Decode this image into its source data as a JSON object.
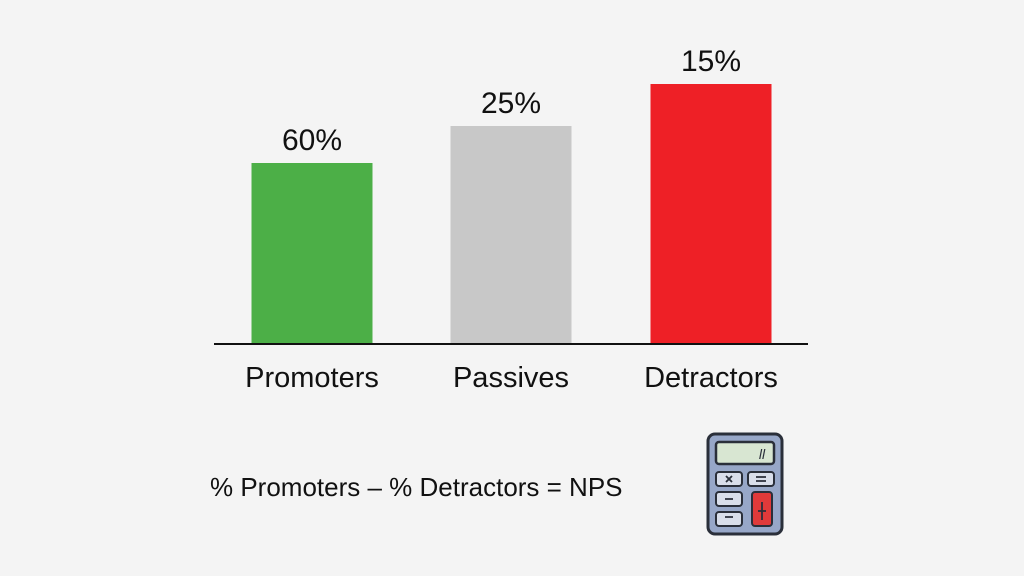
{
  "chart_data": {
    "type": "bar",
    "categories": [
      "Promoters",
      "Passives",
      "Detractors"
    ],
    "values": [
      60,
      25,
      15
    ],
    "data_labels": [
      "60%",
      "25%",
      "15%"
    ],
    "colors": [
      "#4caf47",
      "#c8c8c8",
      "#ee2026"
    ],
    "axis_color": "#111111",
    "grid": false,
    "legend": "none",
    "title": "",
    "xlabel": "",
    "ylabel": ""
  },
  "formula": {
    "text": "% Promoters – % Detractors = NPS"
  },
  "icons": {
    "calculator": "calculator-icon",
    "calculator_display": "ll"
  }
}
